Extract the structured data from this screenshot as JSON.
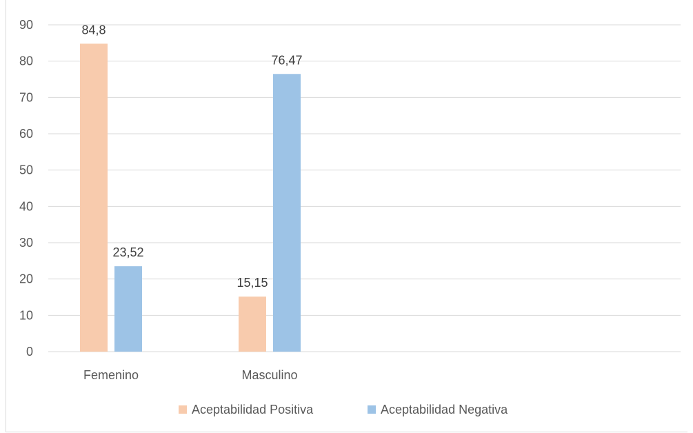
{
  "chart_data": {
    "type": "bar",
    "categories": [
      "Femenino",
      "Masculino"
    ],
    "series": [
      {
        "name": "Aceptabilidad Positiva",
        "values": [
          84.8,
          15.15
        ],
        "labels": [
          "84,8",
          "15,15"
        ],
        "color": "#f8cbad"
      },
      {
        "name": "Aceptabilidad Negativa",
        "values": [
          23.52,
          76.47
        ],
        "labels": [
          "23,52",
          "76,47"
        ],
        "color": "#9dc3e6"
      }
    ],
    "ylim": [
      0,
      90
    ],
    "yticks": [
      0,
      10,
      20,
      30,
      40,
      50,
      60,
      70,
      80,
      90
    ],
    "grid": true,
    "gridline_color": "#d9d9d9",
    "legend": "bottom",
    "title": "",
    "xlabel": "",
    "ylabel": ""
  }
}
